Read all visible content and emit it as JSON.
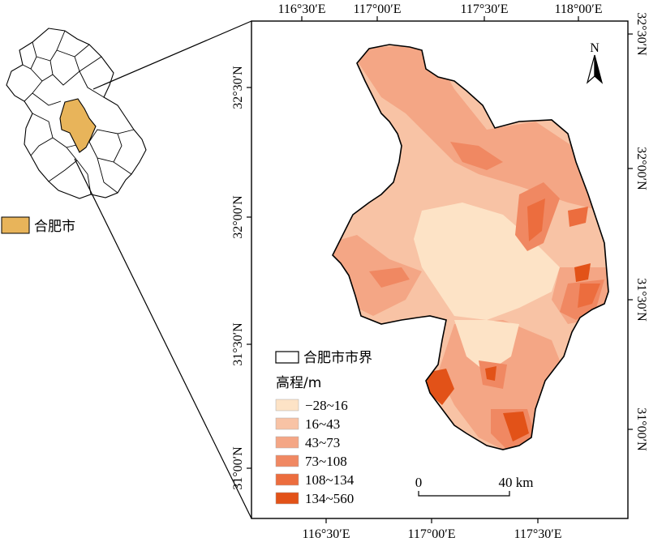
{
  "top_ticks": [
    "116°30′E",
    "117°00′E",
    "117°30′E",
    "118°00′E"
  ],
  "bottom_ticks": [
    "116°30′E",
    "117°00′E",
    "117°30′E"
  ],
  "left_ticks": [
    "32°30′N",
    "32°00′N",
    "31°30′N",
    "31°00′N"
  ],
  "right_ticks": [
    "32°30′N",
    "32°00′N",
    "31°30′N",
    "31°00′N"
  ],
  "north_arrow": {
    "label": "N",
    "icon": "north-arrow-icon"
  },
  "inset": {
    "legend_label": "合肥市",
    "highlight_color": "#e8b45a"
  },
  "legend": {
    "boundary_label": "合肥市市界",
    "elevation_title": "高程/m",
    "classes": [
      {
        "label": "−28~16",
        "color": "#fde3c6"
      },
      {
        "label": "16~43",
        "color": "#f8c3a5"
      },
      {
        "label": "43~73",
        "color": "#f4a685"
      },
      {
        "label": "73~108",
        "color": "#f08862"
      },
      {
        "label": "108~134",
        "color": "#ec6d3e"
      },
      {
        "label": "134~560",
        "color": "#e25218"
      }
    ]
  },
  "scale_bar": {
    "start_label": "0",
    "end_label": "40 km"
  }
}
